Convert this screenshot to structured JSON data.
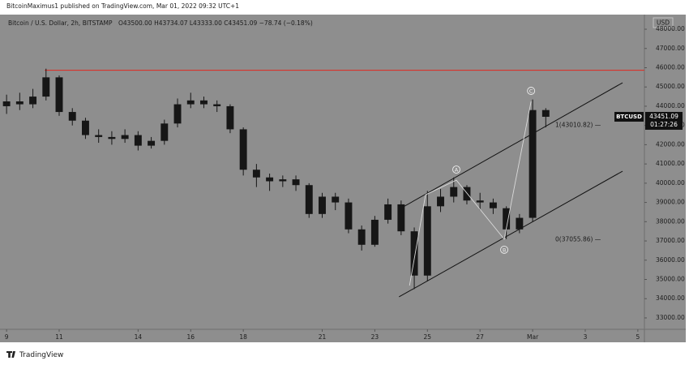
{
  "chart_data": {
    "type": "candlestick",
    "credit": "BitcoinMaximus1 published on TradingView.com, Mar 01, 2022 09:32 UTC+1",
    "title": "Bitcoin / U.S. Dollar, 2h, BITSTAMP",
    "ohlc_legend": "O43500.00  H43734.07  L43333.00  C43451.09  −78.74 (−0.18%)",
    "currency": "USD",
    "symbol": "BTCUSD",
    "countdown": "01:27:26",
    "footer": "TradingView",
    "color": "#161616",
    "background": "#8e8e8e",
    "grid": false,
    "x": [
      0,
      0.5,
      1,
      1.5,
      2,
      2.5,
      3,
      3.5,
      4,
      4.5,
      5,
      5.5,
      6,
      6.5,
      7,
      7.5,
      8,
      8.5,
      9,
      9.5,
      10,
      10.5,
      11,
      11.5,
      12,
      12.5,
      13,
      13.5,
      14,
      14.5,
      15,
      15.5,
      16,
      16.5,
      17,
      17.5,
      18,
      18.5,
      19,
      19.5,
      20,
      20.5
    ],
    "open": [
      44000,
      44250,
      44100,
      44500,
      45500,
      43700,
      43250,
      42500,
      42400,
      42300,
      42500,
      41950,
      42200,
      43100,
      44100,
      44300,
      44100,
      44000,
      42800,
      40700,
      40300,
      40100,
      40200,
      39900,
      38400,
      39300,
      39000,
      37600,
      36800,
      38100,
      38900,
      37500,
      35200,
      38800,
      39300,
      39800,
      39100,
      39000,
      38700,
      37600,
      38200,
      43800
    ],
    "high": [
      44600,
      44700,
      44900,
      45950,
      45600,
      43900,
      43400,
      42800,
      42700,
      42800,
      42700,
      42400,
      43300,
      44400,
      44700,
      44500,
      44300,
      44100,
      42900,
      41000,
      40500,
      40400,
      40400,
      40000,
      39500,
      39500,
      39200,
      37800,
      38300,
      39200,
      39100,
      37700,
      39600,
      39700,
      40300,
      39900,
      39500,
      39200,
      38800,
      38400,
      44350,
      43900
    ],
    "low": [
      43600,
      43800,
      43900,
      44300,
      43500,
      43000,
      42300,
      42100,
      42000,
      42100,
      41700,
      41800,
      42000,
      42900,
      43900,
      43900,
      43700,
      42600,
      40400,
      39800,
      39600,
      39800,
      39600,
      38200,
      38200,
      38600,
      37400,
      36500,
      36700,
      37900,
      37300,
      34500,
      34900,
      38500,
      39000,
      38900,
      38600,
      38400,
      37100,
      37400,
      38000,
      42900
    ],
    "close": [
      44250,
      44100,
      44500,
      45500,
      43700,
      43250,
      42500,
      42400,
      42300,
      42500,
      41950,
      42200,
      43100,
      44100,
      44300,
      44100,
      44000,
      42800,
      40700,
      40300,
      40100,
      40200,
      39900,
      38400,
      39300,
      39000,
      37600,
      36800,
      38100,
      38900,
      37500,
      35200,
      38800,
      39300,
      39800,
      39100,
      39000,
      38700,
      37600,
      38200,
      43800,
      43451.09
    ],
    "xlim": [
      -0.25,
      24.25
    ],
    "ylim": [
      32450,
      48760
    ],
    "xticks": [
      {
        "value": 0,
        "label": "9"
      },
      {
        "value": 2,
        "label": "11"
      },
      {
        "value": 5,
        "label": "14"
      },
      {
        "value": 7,
        "label": "16"
      },
      {
        "value": 9,
        "label": "18"
      },
      {
        "value": 12,
        "label": "21"
      },
      {
        "value": 14,
        "label": "23"
      },
      {
        "value": 16,
        "label": "25"
      },
      {
        "value": 18,
        "label": "27"
      },
      {
        "value": 20,
        "label": "Mar"
      },
      {
        "value": 22,
        "label": "3"
      },
      {
        "value": 24,
        "label": "5"
      }
    ],
    "yticks": [
      {
        "value": 33000,
        "label": "33000.00"
      },
      {
        "value": 34000,
        "label": "34000.00"
      },
      {
        "value": 35000,
        "label": "35000.00"
      },
      {
        "value": 36000,
        "label": "36000.00"
      },
      {
        "value": 37000,
        "label": "37000.00"
      },
      {
        "value": 38000,
        "label": "38000.00"
      },
      {
        "value": 39000,
        "label": "39000.00"
      },
      {
        "value": 40000,
        "label": "40000.00"
      },
      {
        "value": 41000,
        "label": "41000.00"
      },
      {
        "value": 42000,
        "label": "42000.00"
      },
      {
        "value": 43000,
        "label": "43000.00"
      },
      {
        "value": 44000,
        "label": "44000.00"
      },
      {
        "value": 45000,
        "label": "45000.00"
      },
      {
        "value": 46000,
        "label": "46000.00"
      },
      {
        "value": 47000,
        "label": "47000.00"
      },
      {
        "value": 48000,
        "label": "48000.00"
      }
    ],
    "resistance": {
      "value": 45870,
      "from": 1.45,
      "color": "#d8342c"
    },
    "channel": [
      {
        "x": [
          14.92,
          23.42
        ],
        "y": [
          38645,
          45219
        ],
        "color": "#111111"
      },
      {
        "x": [
          14.92,
          23.42
        ],
        "y": [
          34094,
          40625
        ],
        "color": "#111111"
      }
    ],
    "wave": {
      "x": [
        15.32,
        15.93,
        17.1,
        18.92,
        19.94
      ],
      "y": [
        34680,
        39400,
        40160,
        37090,
        44250
      ],
      "color": "#d9d9d9",
      "labels": [
        "A",
        "B",
        "C"
      ]
    },
    "fib_levels": [
      {
        "value": 43010.82,
        "label": "1(43010.82) —"
      },
      {
        "value": 37055.86,
        "label": "0(37055.86) —"
      }
    ]
  }
}
